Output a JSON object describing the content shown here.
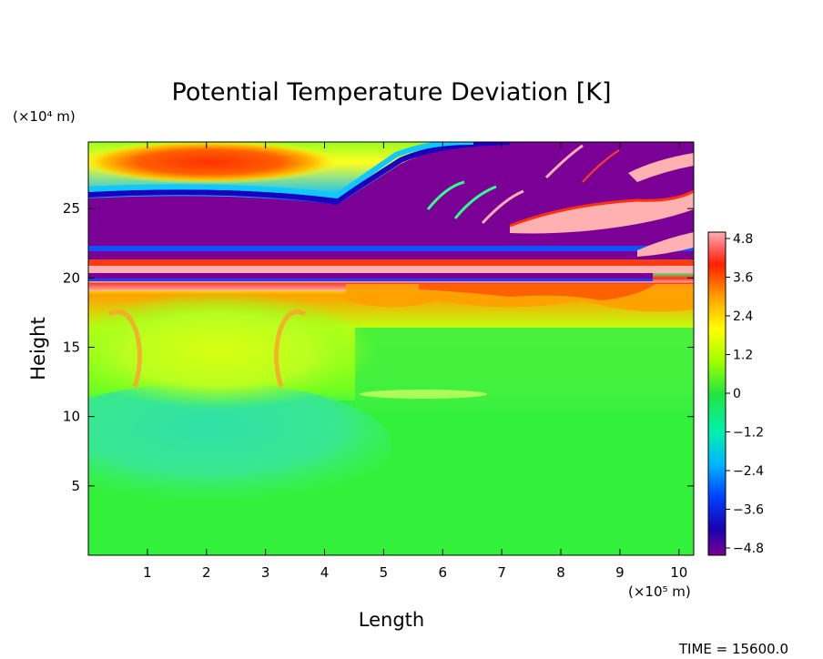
{
  "chart_data": {
    "type": "heatmap",
    "title": "Potential Temperature Deviation [K]",
    "xlabel": "Length",
    "ylabel": "Height",
    "x_unit": "(×10⁵ m)",
    "y_unit": "(×10⁴ m)",
    "xlim": [
      0,
      10.25
    ],
    "ylim": [
      0,
      29.8
    ],
    "x_ticks": [
      1,
      2,
      3,
      4,
      5,
      6,
      7,
      8,
      9,
      10
    ],
    "y_ticks": [
      5,
      10,
      15,
      20,
      25
    ],
    "colorbar": {
      "min": -4.8,
      "max": 4.8,
      "tick_values": [
        4.8,
        3.6,
        2.4,
        1.2,
        0,
        -1.2,
        -2.4,
        -3.6,
        -4.8
      ],
      "tick_labels": [
        "4.8",
        "3.6",
        "2.4",
        "1.2",
        "0",
        "−1.2",
        "−2.4",
        "−3.6",
        "−4.8"
      ]
    },
    "features": [
      {
        "name": "warm-anomaly-top",
        "x": [
          0.8,
          4.0
        ],
        "y": [
          27.3,
          29.5
        ],
        "value": 4.0
      },
      {
        "name": "cold-layer-upper",
        "x": [
          0,
          10.25
        ],
        "y": [
          22.0,
          26.0
        ],
        "value": -4.8
      },
      {
        "name": "warm-band-tropopause",
        "x": [
          0,
          10.25
        ],
        "y": [
          20.6,
          21.8
        ],
        "value": 3.0
      },
      {
        "name": "cold-thin-layer",
        "x": [
          0,
          10.25
        ],
        "y": [
          20.0,
          20.5
        ],
        "value": -4.5
      },
      {
        "name": "warm-layer-lower-stratosphere",
        "x": [
          0,
          10.25
        ],
        "y": [
          17.0,
          19.8
        ],
        "value": 2.2
      },
      {
        "name": "plume-region",
        "x": [
          0.5,
          4.2
        ],
        "y": [
          11.0,
          18.0
        ],
        "value": 1.0
      },
      {
        "name": "cool-region-troposphere",
        "x": [
          0,
          4.2
        ],
        "y": [
          5.0,
          11.0
        ],
        "value": -0.9
      }
    ]
  },
  "footer": {
    "time_label": "TIME = 15600.0"
  }
}
